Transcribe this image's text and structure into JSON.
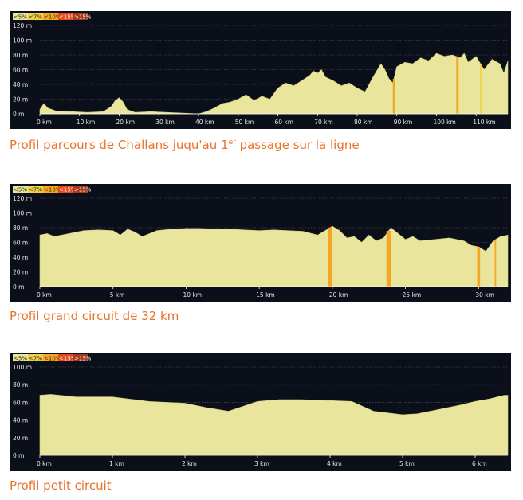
{
  "palette": {
    "background": "#0b0f19",
    "fill_lt5": "#e9e59c",
    "lt7": "#f0d14a",
    "lt10": "#f5a623",
    "lt15": "#e8491d",
    "gt15": "#a63a1c",
    "caption": "#e8732a"
  },
  "legend": [
    "<5%",
    "<7%",
    "<10%",
    "<15%",
    ">15%"
  ],
  "captions": {
    "c1_before": "Profil parcours de Challans juqu'au 1",
    "c1_sup": "er",
    "c1_after": " passage sur la ligne",
    "c2": "Profil grand circuit de  32 km",
    "c3": "Profil petit circuit"
  },
  "chart_data": [
    {
      "type": "area",
      "title": "Profil parcours de Challans juqu'au 1er passage sur la ligne",
      "x_unit": "km",
      "y_unit": "m",
      "xlim": [
        0,
        118
      ],
      "ylim": [
        0,
        120
      ],
      "x_ticks": [
        0,
        10,
        20,
        30,
        40,
        50,
        60,
        70,
        80,
        90,
        100,
        110
      ],
      "x_tick_labels": [
        "0 km",
        "10 km",
        "20 km",
        "30 km",
        "40 km",
        "50 km",
        "60 km",
        "70 km",
        "80 km",
        "90 km",
        "100 km",
        "110 km"
      ],
      "y_ticks": [
        0,
        20,
        40,
        60,
        80,
        100,
        120
      ],
      "y_tick_labels": [
        "0 m",
        "20 m",
        "40 m",
        "60 m",
        "80 m",
        "100 m",
        "120 m"
      ],
      "grid": true,
      "x": [
        0,
        1,
        2,
        4,
        8,
        12,
        16,
        18,
        19,
        20,
        21,
        22,
        24,
        28,
        32,
        36,
        40,
        42,
        44,
        46,
        48,
        50,
        52,
        54,
        56,
        58,
        60,
        62,
        64,
        66,
        68,
        69,
        70,
        71,
        72,
        74,
        76,
        78,
        80,
        82,
        84,
        86,
        87,
        88,
        89,
        90,
        92,
        94,
        96,
        98,
        100,
        102,
        104,
        106,
        107,
        108,
        110,
        112,
        114,
        116,
        117,
        118
      ],
      "elevation": [
        6,
        14,
        8,
        4,
        3,
        2,
        3,
        10,
        18,
        22,
        16,
        6,
        2,
        3,
        2,
        1,
        0,
        3,
        8,
        14,
        16,
        20,
        26,
        18,
        24,
        20,
        35,
        42,
        38,
        45,
        52,
        58,
        55,
        60,
        50,
        45,
        38,
        42,
        35,
        30,
        50,
        68,
        60,
        48,
        42,
        64,
        70,
        68,
        76,
        72,
        82,
        78,
        80,
        76,
        82,
        70,
        78,
        60,
        74,
        68,
        55,
        72
      ],
      "steep_sections_km": [
        {
          "start": 89,
          "end": 89.5,
          "grade": "<10%"
        },
        {
          "start": 105,
          "end": 105.6,
          "grade": "<10%"
        },
        {
          "start": 111,
          "end": 111.4,
          "grade": "<7%"
        }
      ]
    },
    {
      "type": "area",
      "title": "Profil grand circuit de  32 km",
      "x_unit": "km",
      "y_unit": "m",
      "xlim": [
        0,
        32
      ],
      "ylim": [
        0,
        120
      ],
      "x_ticks": [
        0,
        5,
        10,
        15,
        20,
        25,
        30
      ],
      "x_tick_labels": [
        "0 km",
        "5 km",
        "10 km",
        "15 km",
        "20 km",
        "25 km",
        "30 km"
      ],
      "y_ticks": [
        0,
        20,
        40,
        60,
        80,
        100,
        120
      ],
      "y_tick_labels": [
        "0 m",
        "20 m",
        "40 m",
        "60 m",
        "80 m",
        "100 m",
        "120 m"
      ],
      "grid": true,
      "x": [
        0,
        0.5,
        1,
        2,
        3,
        4,
        5,
        5.5,
        6,
        6.5,
        7,
        8,
        9,
        10,
        11,
        12,
        13,
        14,
        15,
        16,
        17,
        18,
        19,
        19.5,
        20,
        20.5,
        21,
        21.5,
        22,
        22.5,
        23,
        23.5,
        24,
        24.5,
        25,
        25.5,
        26,
        27,
        28,
        29,
        29.5,
        30,
        30.5,
        31,
        31.5,
        32
      ],
      "elevation": [
        70,
        72,
        68,
        72,
        76,
        77,
        76,
        70,
        78,
        74,
        68,
        76,
        78,
        79,
        79,
        78,
        78,
        77,
        76,
        77,
        76,
        75,
        70,
        76,
        82,
        76,
        66,
        68,
        60,
        70,
        62,
        66,
        80,
        72,
        64,
        68,
        62,
        64,
        66,
        62,
        56,
        54,
        48,
        62,
        68,
        70
      ],
      "steep_sections_km": [
        {
          "start": 19.7,
          "end": 20.0,
          "grade": "<10%"
        },
        {
          "start": 23.7,
          "end": 24.0,
          "grade": "<10%"
        },
        {
          "start": 29.9,
          "end": 30.1,
          "grade": "<10%"
        },
        {
          "start": 31.1,
          "end": 31.2,
          "grade": "<10%"
        }
      ]
    },
    {
      "type": "area",
      "title": "Profil petit circuit",
      "x_unit": "km",
      "y_unit": "m",
      "xlim": [
        0,
        6.45
      ],
      "ylim": [
        0,
        100
      ],
      "x_ticks": [
        0,
        1,
        2,
        3,
        4,
        5,
        6
      ],
      "x_tick_labels": [
        "0 km",
        "1 km",
        "2 km",
        "3 km",
        "4 km",
        "5 km",
        "6 km"
      ],
      "y_ticks": [
        0,
        20,
        40,
        60,
        80,
        100
      ],
      "y_tick_labels": [
        "0 m",
        "20 m",
        "40 m",
        "60 m",
        "80 m",
        "100 m"
      ],
      "grid": true,
      "x": [
        0,
        0.15,
        0.5,
        1,
        1.5,
        2,
        2.3,
        2.6,
        3,
        3.3,
        3.6,
        4,
        4.3,
        4.6,
        5,
        5.2,
        5.5,
        5.8,
        6,
        6.2,
        6.4,
        6.45
      ],
      "elevation": [
        68,
        69,
        66,
        66,
        61,
        59,
        54,
        50,
        61,
        63,
        63,
        62,
        61,
        50,
        46,
        47,
        52,
        57,
        61,
        64,
        68,
        68
      ],
      "steep_sections_km": []
    }
  ]
}
